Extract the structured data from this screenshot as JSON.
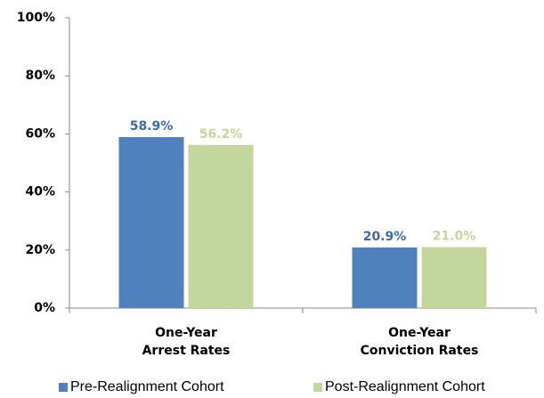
{
  "chart_data": {
    "type": "bar",
    "categories": [
      "One-Year\nArrest Rates",
      "One-Year\nConviction Rates"
    ],
    "series": [
      {
        "name": "Pre-Realignment Cohort",
        "color": "#4f81bd",
        "values": [
          58.9,
          20.9
        ],
        "value_labels": [
          "58.9%",
          "20.9%"
        ]
      },
      {
        "name": "Post-Realignment Cohort",
        "color": "#c3d69b",
        "values": [
          56.2,
          21.0
        ],
        "value_labels": [
          "56.2%",
          "21.0%"
        ]
      }
    ],
    "ylim": [
      0,
      100
    ],
    "yticks": [
      {
        "value": 0,
        "label": "0%"
      },
      {
        "value": 20,
        "label": "20%"
      },
      {
        "value": 40,
        "label": "40%"
      },
      {
        "value": 60,
        "label": "60%"
      },
      {
        "value": 80,
        "label": "80%"
      },
      {
        "value": 100,
        "label": "100%"
      }
    ],
    "grid": false,
    "legend": "bottom"
  }
}
